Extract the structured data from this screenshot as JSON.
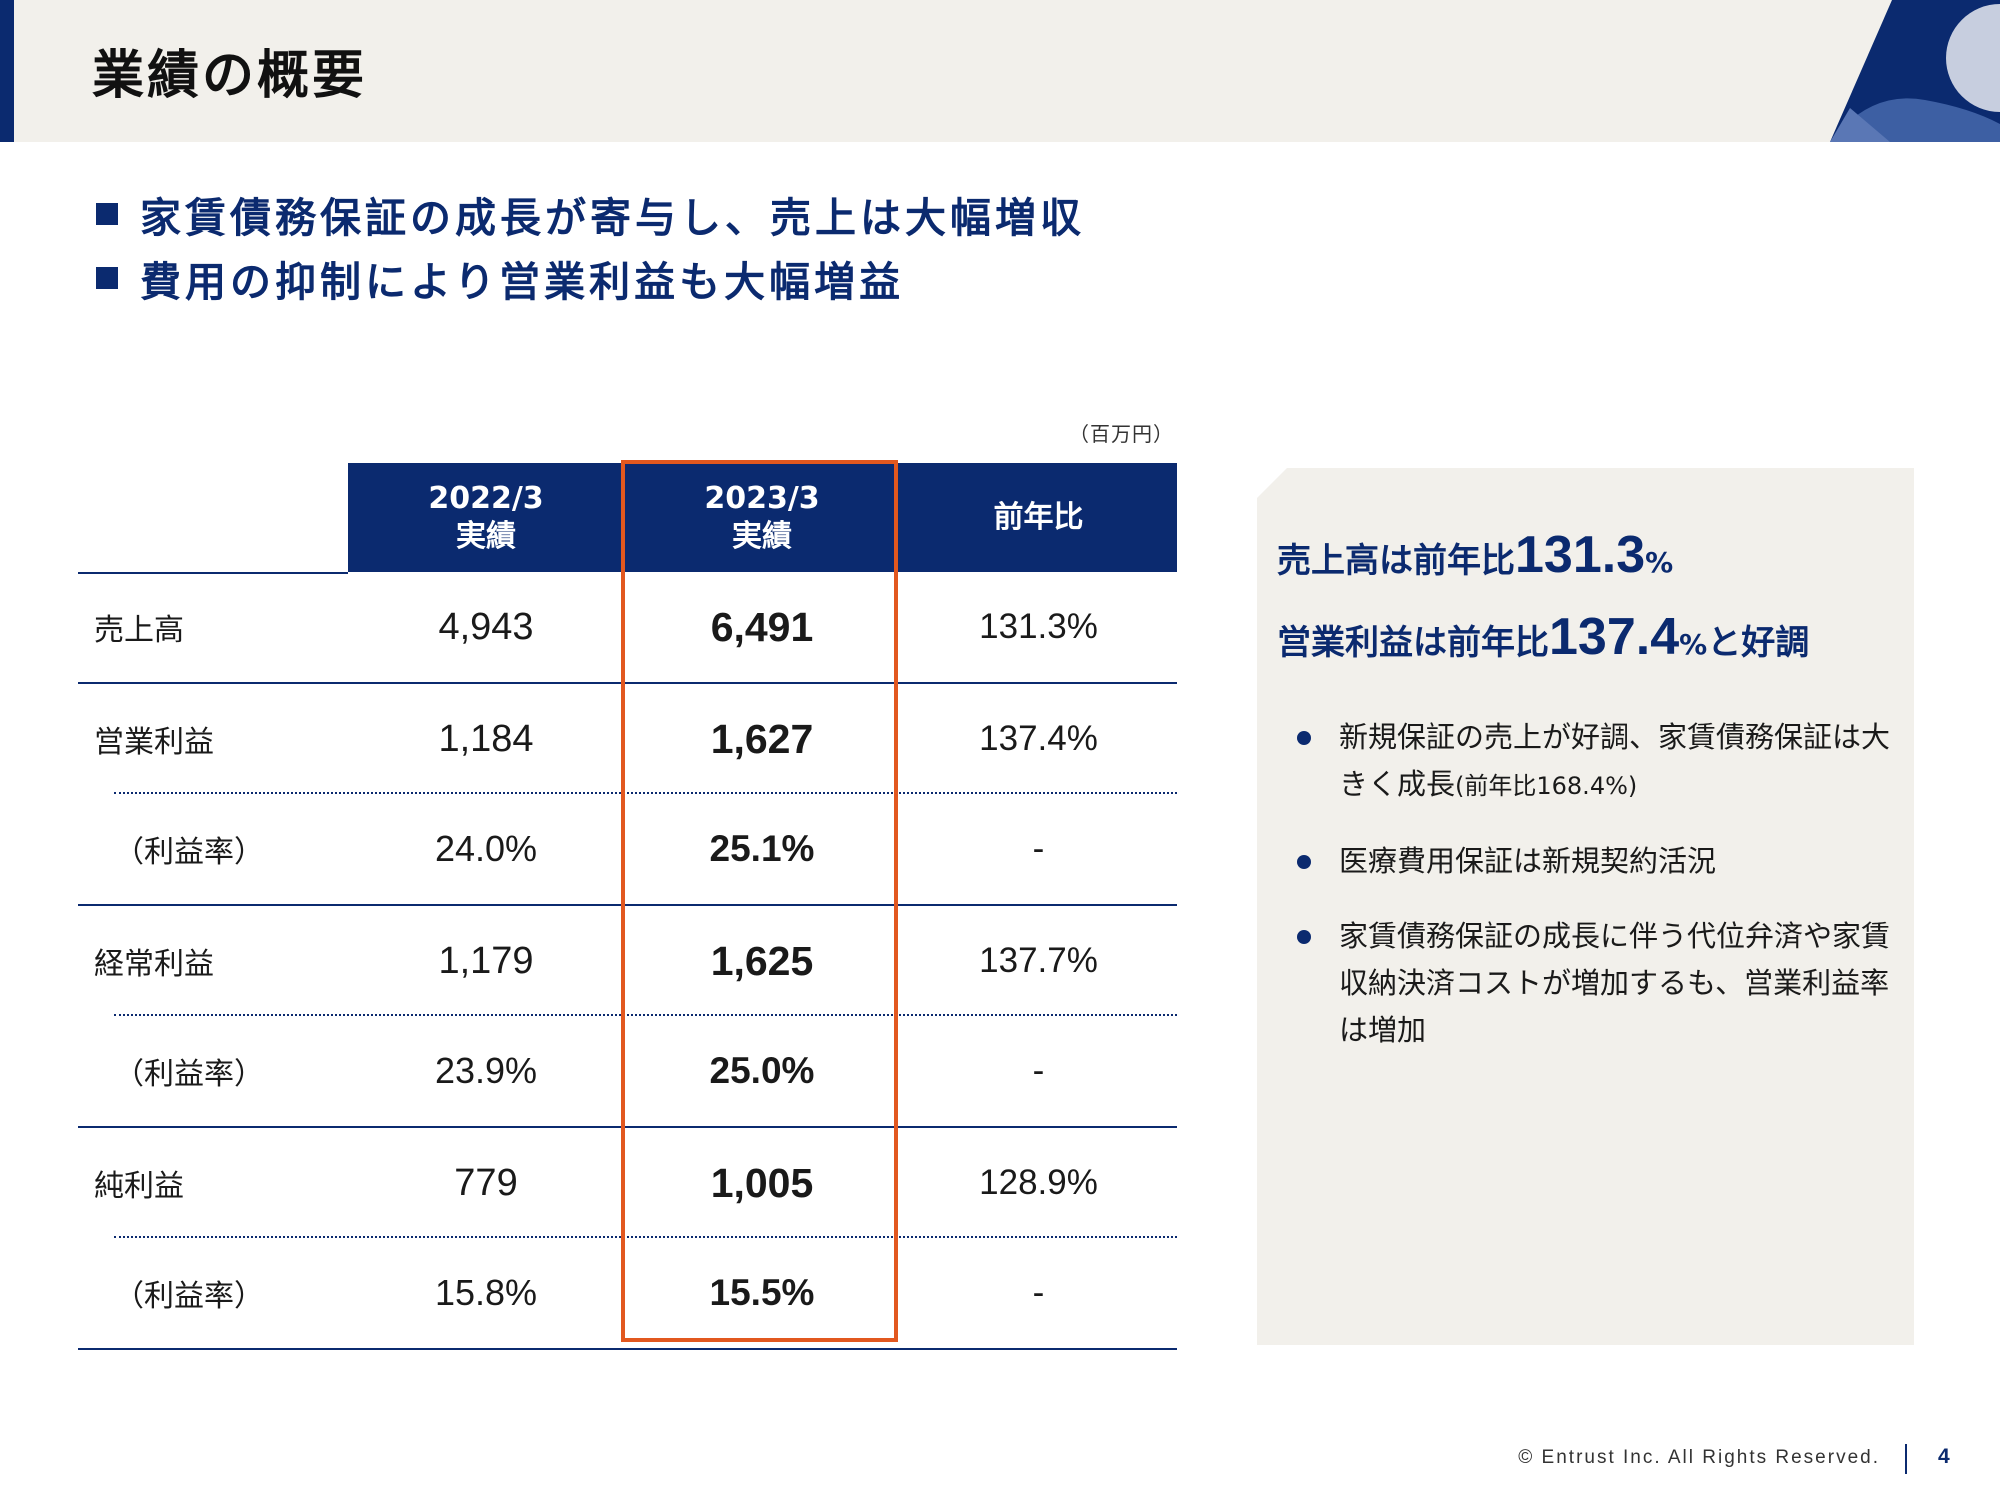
{
  "header": {
    "title": "業績の概要"
  },
  "messages": [
    "家賃債務保証の成長が寄与し、売上は大幅増収",
    "費用の抑制により営業利益も大幅増益"
  ],
  "table": {
    "unit_note": "（百万円）",
    "columns": [
      {
        "line1": "2022/3",
        "line2": "実績"
      },
      {
        "line1": "2023/3",
        "line2": "実績"
      },
      {
        "line1": "前年比",
        "line2": ""
      }
    ],
    "highlighted_column": "2023/3",
    "rows": [
      {
        "label": "売上高",
        "fy2022": "4,943",
        "fy2023": "6,491",
        "yoy": "131.3%"
      },
      {
        "label": "営業利益",
        "fy2022": "1,184",
        "fy2023": "1,627",
        "yoy": "137.4%"
      },
      {
        "label": "（利益率）",
        "fy2022": "24.0%",
        "fy2023": "25.1%",
        "yoy": "-"
      },
      {
        "label": "経常利益",
        "fy2022": "1,179",
        "fy2023": "1,625",
        "yoy": "137.7%"
      },
      {
        "label": "（利益率）",
        "fy2022": "23.9%",
        "fy2023": "25.0%",
        "yoy": "-"
      },
      {
        "label": "純利益",
        "fy2022": "779",
        "fy2023": "1,005",
        "yoy": "128.9%"
      },
      {
        "label": "（利益率）",
        "fy2022": "15.8%",
        "fy2023": "15.5%",
        "yoy": "-"
      }
    ]
  },
  "summary": {
    "line1_prefix": "売上高は前年比",
    "line1_value": "131.3",
    "line1_pct": "%",
    "line2_prefix": "営業利益は前年比",
    "line2_value": "137.4",
    "line2_pct": "%",
    "line2_suffix": "と好調",
    "bullets": [
      {
        "text": "新規保証の売上が好調、家賃債務保証は大きく成長",
        "note": "(前年比168.4%)"
      },
      {
        "text": "医療費用保証は新規契約活況",
        "note": ""
      },
      {
        "text": "家賃債務保証の成長に伴う代位弁済や家賃収納決済コストが増加するも、営業利益率は増加",
        "note": ""
      }
    ]
  },
  "footer": {
    "copyright": "© Entrust Inc. All Rights Reserved.",
    "page_number": "4"
  },
  "colors": {
    "navy": "#0b2a6f",
    "highlight": "#e2581f",
    "panel_bg": "#f2f0eb"
  }
}
